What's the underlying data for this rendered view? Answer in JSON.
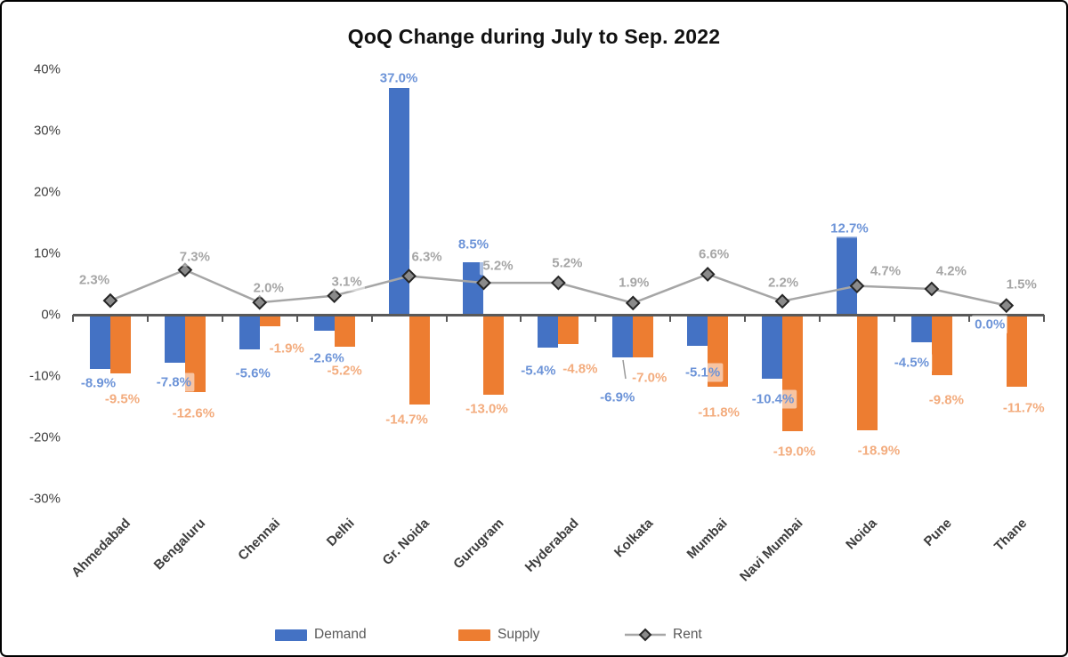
{
  "title": "QoQ Change during July to Sep. 2022",
  "colors": {
    "demand_bar": "#4472C4",
    "supply_bar": "#ED7D31",
    "rent_line": "#A6A6A6",
    "marker_fill": "#8a8a8a",
    "marker_stroke": "#262626",
    "demand_label": "#6D94D8",
    "supply_label": "#F3AC7E",
    "rent_label": "#A6A6A6",
    "axis": "#595959",
    "axis_tick_label": "#404040"
  },
  "legend": {
    "items": [
      {
        "label": "Demand",
        "swatch": "demand-swatch",
        "color": "#4472C4"
      },
      {
        "label": "Supply",
        "swatch": "supply-swatch",
        "color": "#ED7D31"
      },
      {
        "label": "Rent",
        "swatch": "rent-line-swatch",
        "color": "#A6A6A6"
      }
    ]
  },
  "chart_data": {
    "type": "bar",
    "subtype": "grouped bars with line overlay (combo chart)",
    "title": "QoQ Change during July to Sep. 2022",
    "categories": [
      "Ahmedabad",
      "Bengaluru",
      "Chennai",
      "Delhi",
      "Gr. Noida",
      "Gurugram",
      "Hyderabad",
      "Kolkata",
      "Mumbai",
      "Navi Mumbai",
      "Noida",
      "Pune",
      "Thane"
    ],
    "series": [
      {
        "name": "Demand",
        "type": "bar",
        "values": [
          -8.9,
          -7.8,
          -5.6,
          -2.6,
          37.0,
          8.5,
          -5.4,
          -6.9,
          -5.1,
          -10.4,
          12.7,
          -4.5,
          0.0
        ],
        "labels": [
          "-8.9%",
          "-7.8%",
          "-5.6%",
          "-2.6%",
          "37.0%",
          "8.5%",
          "-5.4%",
          "-6.9%",
          "-5.1%",
          "-10.4%",
          "12.7%",
          "-4.5%",
          "0.0%"
        ]
      },
      {
        "name": "Supply",
        "type": "bar",
        "values": [
          -9.5,
          -12.6,
          -1.9,
          -5.2,
          -14.7,
          -13.0,
          -4.8,
          -7.0,
          -11.8,
          -19.0,
          -18.9,
          -9.8,
          -11.7
        ],
        "labels": [
          "-9.5%",
          "-12.6%",
          "-1.9%",
          "-5.2%",
          "-14.7%",
          "-13.0%",
          "-4.8%",
          "-7.0%",
          "-11.8%",
          "-19.0%",
          "-18.9%",
          "-9.8%",
          "-11.7%"
        ]
      },
      {
        "name": "Rent",
        "type": "line",
        "marker": "diamond",
        "values": [
          2.3,
          7.3,
          2.0,
          3.1,
          6.3,
          5.2,
          5.2,
          1.9,
          6.6,
          2.2,
          4.7,
          4.2,
          1.5
        ],
        "labels": [
          "2.3%",
          "7.3%",
          "2.0%",
          "3.1%",
          "6.3%",
          "5.2%",
          "5.2%",
          "1.9%",
          "6.6%",
          "2.2%",
          "4.7%",
          "4.2%",
          "1.5%"
        ]
      }
    ],
    "y_axis": {
      "ticks": [
        "40%",
        "30%",
        "20%",
        "10%",
        "0%",
        "-10%",
        "-20%",
        "-30%"
      ],
      "tick_values": [
        40,
        30,
        20,
        10,
        0,
        -10,
        -20,
        -30
      ],
      "min": -30,
      "max": 40,
      "unit": "%"
    },
    "gridlines": false,
    "legend_position": "bottom"
  }
}
